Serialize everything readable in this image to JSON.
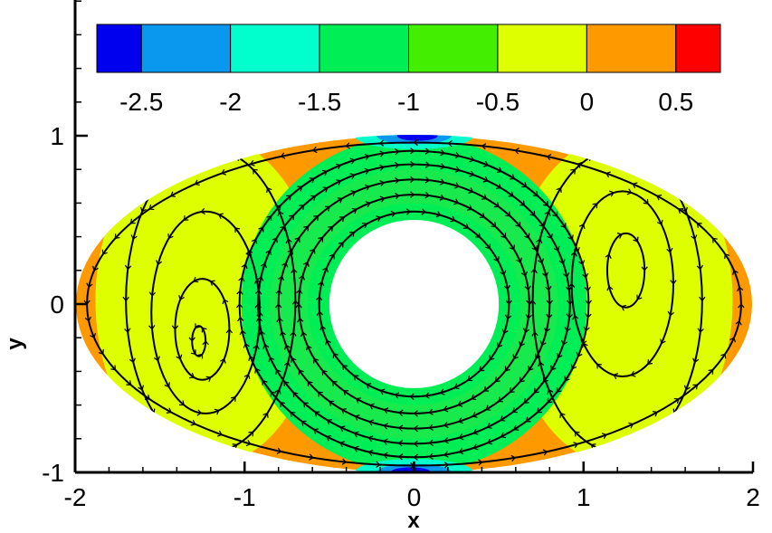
{
  "chart_data": {
    "type": "heatmap",
    "title": "",
    "xlabel": "x",
    "ylabel": "y",
    "xlim": [
      -2,
      2
    ],
    "ylim": [
      -1,
      1
    ],
    "x_ticks": [
      -2,
      -1,
      0,
      1,
      2
    ],
    "x_tick_labels": [
      "-2",
      "-1",
      "0",
      "1",
      "2"
    ],
    "y_ticks": [
      -1,
      0,
      1
    ],
    "y_tick_labels": [
      "-1",
      "0",
      "1"
    ],
    "grid": false,
    "legend": {
      "type": "colorbar",
      "placement": "top",
      "levels": [
        -2.75,
        -2.5,
        -2,
        -1.5,
        -1,
        -0.5,
        0,
        0.5,
        0.75
      ],
      "tick_values": [
        -2.5,
        -2,
        -1.5,
        -1,
        -0.5,
        0,
        0.5
      ],
      "tick_labels": [
        "-2.5",
        "-2",
        "-1.5",
        "-1",
        "-0.5",
        "0",
        "0.5"
      ],
      "colors": [
        "#0000ee",
        "#0a98ee",
        "#00ffcc",
        "#00ee55",
        "#44ee00",
        "#ddff00",
        "#ff9900",
        "#ff0000"
      ]
    },
    "domain": {
      "outer_ellipse": {
        "cx": 0,
        "cy": 0,
        "rx": 2,
        "ry": 1
      },
      "inner_circle": {
        "cx": 0,
        "cy": 0,
        "r": 0.5
      }
    },
    "regions": [
      {
        "name": "outer-band",
        "color": "#ff9900"
      },
      {
        "name": "left-cell-zone",
        "color": "#ddff00"
      },
      {
        "name": "right-cell-zone",
        "color": "#ddff00"
      },
      {
        "name": "central-ring",
        "color": "#00ee55"
      },
      {
        "name": "inner-rim",
        "color": "#00ee55"
      },
      {
        "name": "top-low",
        "color": "#0000ee"
      },
      {
        "name": "bottom-low",
        "color": "#0000ee"
      }
    ],
    "streamlines": {
      "central_rings": [
        {
          "rx": 0.56,
          "ry": 0.55
        },
        {
          "rx": 0.68,
          "ry": 0.65
        },
        {
          "rx": 0.8,
          "ry": 0.74
        },
        {
          "rx": 0.92,
          "ry": 0.83
        },
        {
          "rx": 1.03,
          "ry": 0.91
        }
      ],
      "left_cells": [
        {
          "cx": -1.27,
          "cy": -0.22,
          "rx": 0.04,
          "ry": 0.09
        },
        {
          "cx": -1.25,
          "cy": -0.15,
          "rx": 0.16,
          "ry": 0.3
        },
        {
          "cx": -1.23,
          "cy": -0.05,
          "rx": 0.32,
          "ry": 0.6
        },
        {
          "cx": -1.2,
          "cy": 0.02,
          "rx": 0.5,
          "ry": 0.9
        }
      ],
      "right_cells": [
        {
          "cx": 1.25,
          "cy": 0.2,
          "rx": 0.11,
          "ry": 0.22
        },
        {
          "cx": 1.23,
          "cy": 0.12,
          "rx": 0.3,
          "ry": 0.55
        },
        {
          "cx": 1.2,
          "cy": 0.02,
          "rx": 0.5,
          "ry": 0.9
        }
      ],
      "outer_loops": [
        {
          "cx": 0,
          "cy": 0,
          "rx": 1.93,
          "ry": 0.96
        }
      ]
    }
  }
}
